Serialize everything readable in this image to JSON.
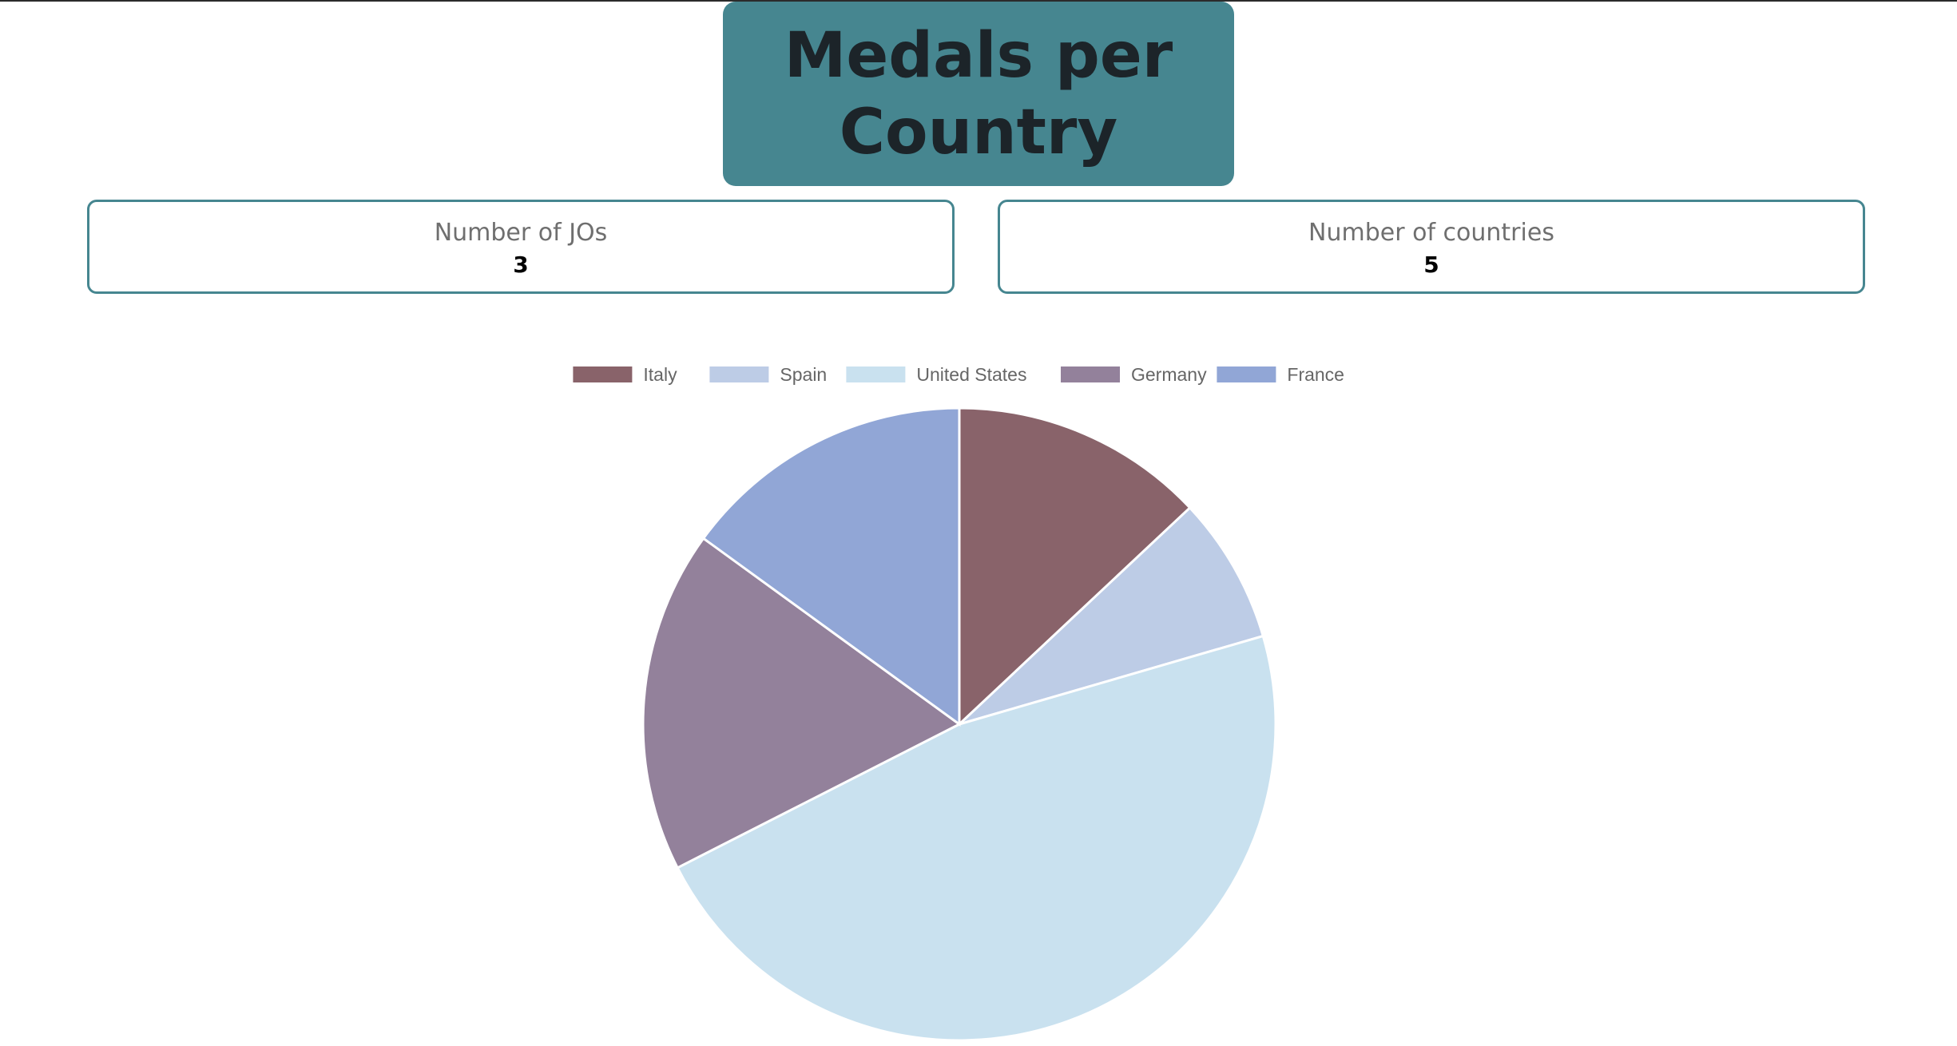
{
  "header": {
    "title": "Medals per Country"
  },
  "stats": [
    {
      "label": "Number of JOs",
      "value": "3"
    },
    {
      "label": "Number of countries",
      "value": "5"
    }
  ],
  "colors": {
    "accent": "#468690",
    "title_text": "#1c2429"
  },
  "chart_data": {
    "type": "pie",
    "legend": "top",
    "labels": [
      "Italy",
      "Spain",
      "United States",
      "Germany",
      "France"
    ],
    "values": [
      13,
      7.5,
      47,
      17.5,
      15
    ],
    "colors": [
      "#89636a",
      "#bdcce6",
      "#c9e1ef",
      "#93819b",
      "#91a6d6"
    ]
  }
}
